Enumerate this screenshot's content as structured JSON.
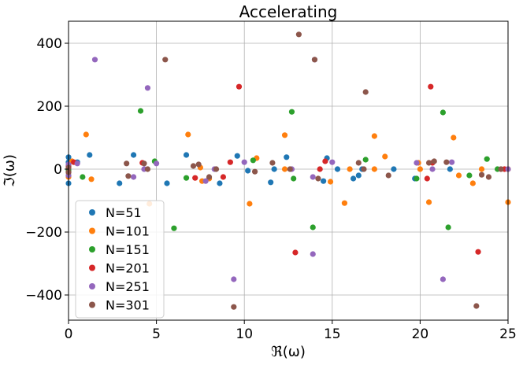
{
  "chart_data": {
    "type": "scatter",
    "title": "Accelerating",
    "xlabel": "ℜ(ω)",
    "ylabel": "ℑ(ω)",
    "xlim": [
      0,
      25
    ],
    "ylim": [
      -480,
      470
    ],
    "xticks": [
      0,
      5,
      10,
      15,
      20,
      25
    ],
    "yticks": [
      -400,
      -200,
      0,
      200,
      400
    ],
    "xtick_labels": [
      "0",
      "5",
      "10",
      "15",
      "20",
      "25"
    ],
    "ytick_labels": [
      "−400",
      "−200",
      "0",
      "200",
      "400"
    ],
    "grid": true,
    "legend_position": "lower-left",
    "series": [
      {
        "name": "N=51",
        "color": "#1f77b4",
        "points": [
          [
            0,
            -45
          ],
          [
            0,
            -20
          ],
          [
            0,
            0
          ],
          [
            0,
            22
          ],
          [
            0,
            38
          ],
          [
            0.5,
            22
          ],
          [
            1.2,
            45
          ],
          [
            2.9,
            -45
          ],
          [
            3.7,
            45
          ],
          [
            5.6,
            -45
          ],
          [
            6.7,
            45
          ],
          [
            8.6,
            -45
          ],
          [
            9.6,
            42
          ],
          [
            10.2,
            -5
          ],
          [
            11.5,
            -42
          ],
          [
            11.7,
            0
          ],
          [
            12.4,
            38
          ],
          [
            14.5,
            -38
          ],
          [
            14.7,
            35
          ],
          [
            15.3,
            0
          ],
          [
            16.2,
            -30
          ],
          [
            16.5,
            -20
          ],
          [
            16.7,
            0
          ],
          [
            18.5,
            0
          ],
          [
            19.7,
            -30
          ],
          [
            21.7,
            0
          ]
        ]
      },
      {
        "name": "N=101",
        "color": "#ff7f0e",
        "points": [
          [
            0,
            -25
          ],
          [
            0,
            5
          ],
          [
            0.2,
            25
          ],
          [
            1,
            110
          ],
          [
            1.3,
            -32
          ],
          [
            4.6,
            -110
          ],
          [
            6.8,
            110
          ],
          [
            7.5,
            5
          ],
          [
            7.6,
            -38
          ],
          [
            8,
            -30
          ],
          [
            10.3,
            -110
          ],
          [
            10.7,
            35
          ],
          [
            12.3,
            108
          ],
          [
            12.3,
            0
          ],
          [
            14.9,
            -40
          ],
          [
            15.7,
            -108
          ],
          [
            16,
            0
          ],
          [
            17.4,
            105
          ],
          [
            17.4,
            0
          ],
          [
            18,
            40
          ],
          [
            19.9,
            20
          ],
          [
            20,
            0
          ],
          [
            20.5,
            -105
          ],
          [
            21.9,
            100
          ],
          [
            22.2,
            -20
          ],
          [
            23,
            -45
          ],
          [
            23.5,
            0
          ],
          [
            25,
            -105
          ],
          [
            25,
            0
          ]
        ]
      },
      {
        "name": "N=151",
        "color": "#2ca02c",
        "points": [
          [
            0,
            -5
          ],
          [
            0,
            10
          ],
          [
            0.8,
            -25
          ],
          [
            4.1,
            185
          ],
          [
            4.9,
            25
          ],
          [
            6,
            -188
          ],
          [
            6.7,
            -28
          ],
          [
            10.5,
            28
          ],
          [
            12.7,
            182
          ],
          [
            12.8,
            -30
          ],
          [
            13.9,
            -185
          ],
          [
            16.9,
            30
          ],
          [
            19.8,
            -30
          ],
          [
            21.3,
            180
          ],
          [
            21.6,
            -185
          ],
          [
            22.8,
            -20
          ],
          [
            23.8,
            32
          ],
          [
            24.4,
            0
          ]
        ]
      },
      {
        "name": "N=201",
        "color": "#d62728",
        "points": [
          [
            0,
            -10
          ],
          [
            0,
            10
          ],
          [
            0.3,
            22
          ],
          [
            4.2,
            20
          ],
          [
            7.2,
            -28
          ],
          [
            8.8,
            -25
          ],
          [
            9.2,
            22
          ],
          [
            9.7,
            262
          ],
          [
            12.9,
            -265
          ],
          [
            14.3,
            0
          ],
          [
            14.6,
            25
          ],
          [
            20.4,
            -30
          ],
          [
            20.6,
            262
          ],
          [
            20.7,
            20
          ],
          [
            23.3,
            -263
          ],
          [
            24.8,
            0
          ]
        ]
      },
      {
        "name": "N=251",
        "color": "#9467bd",
        "points": [
          [
            0,
            -20
          ],
          [
            0,
            15
          ],
          [
            0.5,
            18
          ],
          [
            1.5,
            348
          ],
          [
            3.7,
            -25
          ],
          [
            4.3,
            0
          ],
          [
            4.5,
            258
          ],
          [
            5,
            18
          ],
          [
            7.8,
            -38
          ],
          [
            8.3,
            0
          ],
          [
            9.4,
            -350
          ],
          [
            10,
            22
          ],
          [
            12.7,
            0
          ],
          [
            13.9,
            -25
          ],
          [
            14,
            348
          ],
          [
            13.9,
            -270
          ],
          [
            15,
            22
          ],
          [
            19.8,
            20
          ],
          [
            20.7,
            0
          ],
          [
            21.3,
            -350
          ],
          [
            21.8,
            22
          ],
          [
            25,
            0
          ]
        ]
      },
      {
        "name": "N=301",
        "color": "#8c564b",
        "points": [
          [
            0,
            -10
          ],
          [
            0,
            5
          ],
          [
            3.3,
            18
          ],
          [
            3.4,
            -22
          ],
          [
            4.3,
            18
          ],
          [
            4.5,
            0
          ],
          [
            5.5,
            348
          ],
          [
            7.1,
            10
          ],
          [
            7.4,
            15
          ],
          [
            8,
            -25
          ],
          [
            8.4,
            0
          ],
          [
            9.4,
            -438
          ],
          [
            10.6,
            -8
          ],
          [
            11.6,
            20
          ],
          [
            12.6,
            0
          ],
          [
            13.1,
            428
          ],
          [
            14,
            348
          ],
          [
            14.2,
            -30
          ],
          [
            16.5,
            20
          ],
          [
            16.8,
            0
          ],
          [
            16.9,
            245
          ],
          [
            18.2,
            -20
          ],
          [
            20.5,
            20
          ],
          [
            20.8,
            25
          ],
          [
            21.5,
            22
          ],
          [
            23.2,
            -435
          ],
          [
            23.5,
            -18
          ],
          [
            23.9,
            -25
          ],
          [
            24.6,
            0
          ]
        ]
      }
    ]
  }
}
